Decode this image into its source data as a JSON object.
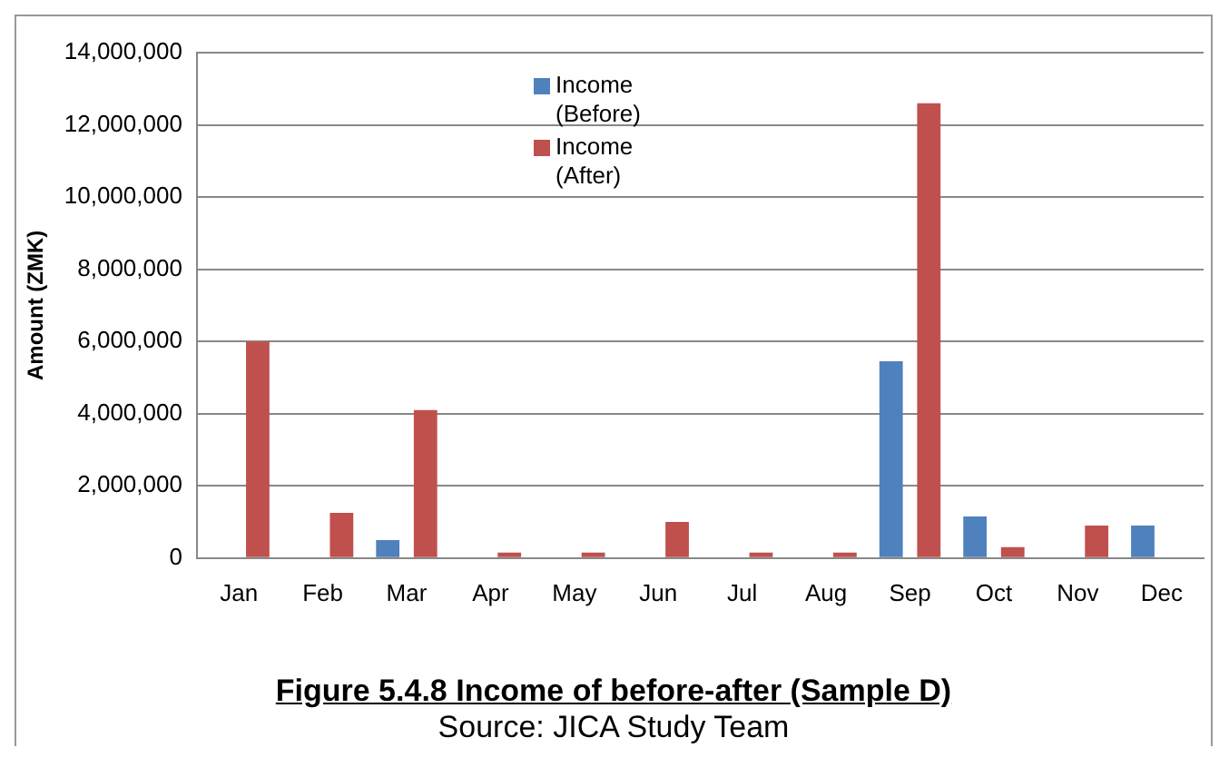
{
  "chart_data": {
    "type": "bar",
    "title": "Figure 5.4.8 Income of before-after (Sample D)",
    "ylabel": "Amount (ZMK)",
    "annotations": [
      "Source: JICA Study Team"
    ],
    "categories": [
      "Jan",
      "Feb",
      "Mar",
      "Apr",
      "May",
      "Jun",
      "Jul",
      "Aug",
      "Sep",
      "Oct",
      "Nov",
      "Dec"
    ],
    "series": [
      {
        "name": "Income (Before)",
        "color": "#4f81bd",
        "values": [
          0,
          0,
          500000,
          0,
          0,
          0,
          0,
          0,
          5450000,
          1150000,
          0,
          900000
        ]
      },
      {
        "name": "Income (After)",
        "color": "#c0504d",
        "values": [
          6000000,
          1250000,
          4100000,
          150000,
          150000,
          1000000,
          150000,
          150000,
          12600000,
          300000,
          900000,
          0
        ]
      }
    ],
    "ylim": [
      0,
      14000000
    ],
    "yticks": [
      {
        "value": 0,
        "label": "0"
      },
      {
        "value": 2000000,
        "label": "2,000,000"
      },
      {
        "value": 4000000,
        "label": "4,000,000"
      },
      {
        "value": 6000000,
        "label": "6,000,000"
      },
      {
        "value": 8000000,
        "label": "8,000,000"
      },
      {
        "value": 10000000,
        "label": "10,000,000"
      },
      {
        "value": 12000000,
        "label": "12,000,000"
      },
      {
        "value": 14000000,
        "label": "14,000,000"
      }
    ],
    "grid": "y",
    "legend": "top"
  }
}
